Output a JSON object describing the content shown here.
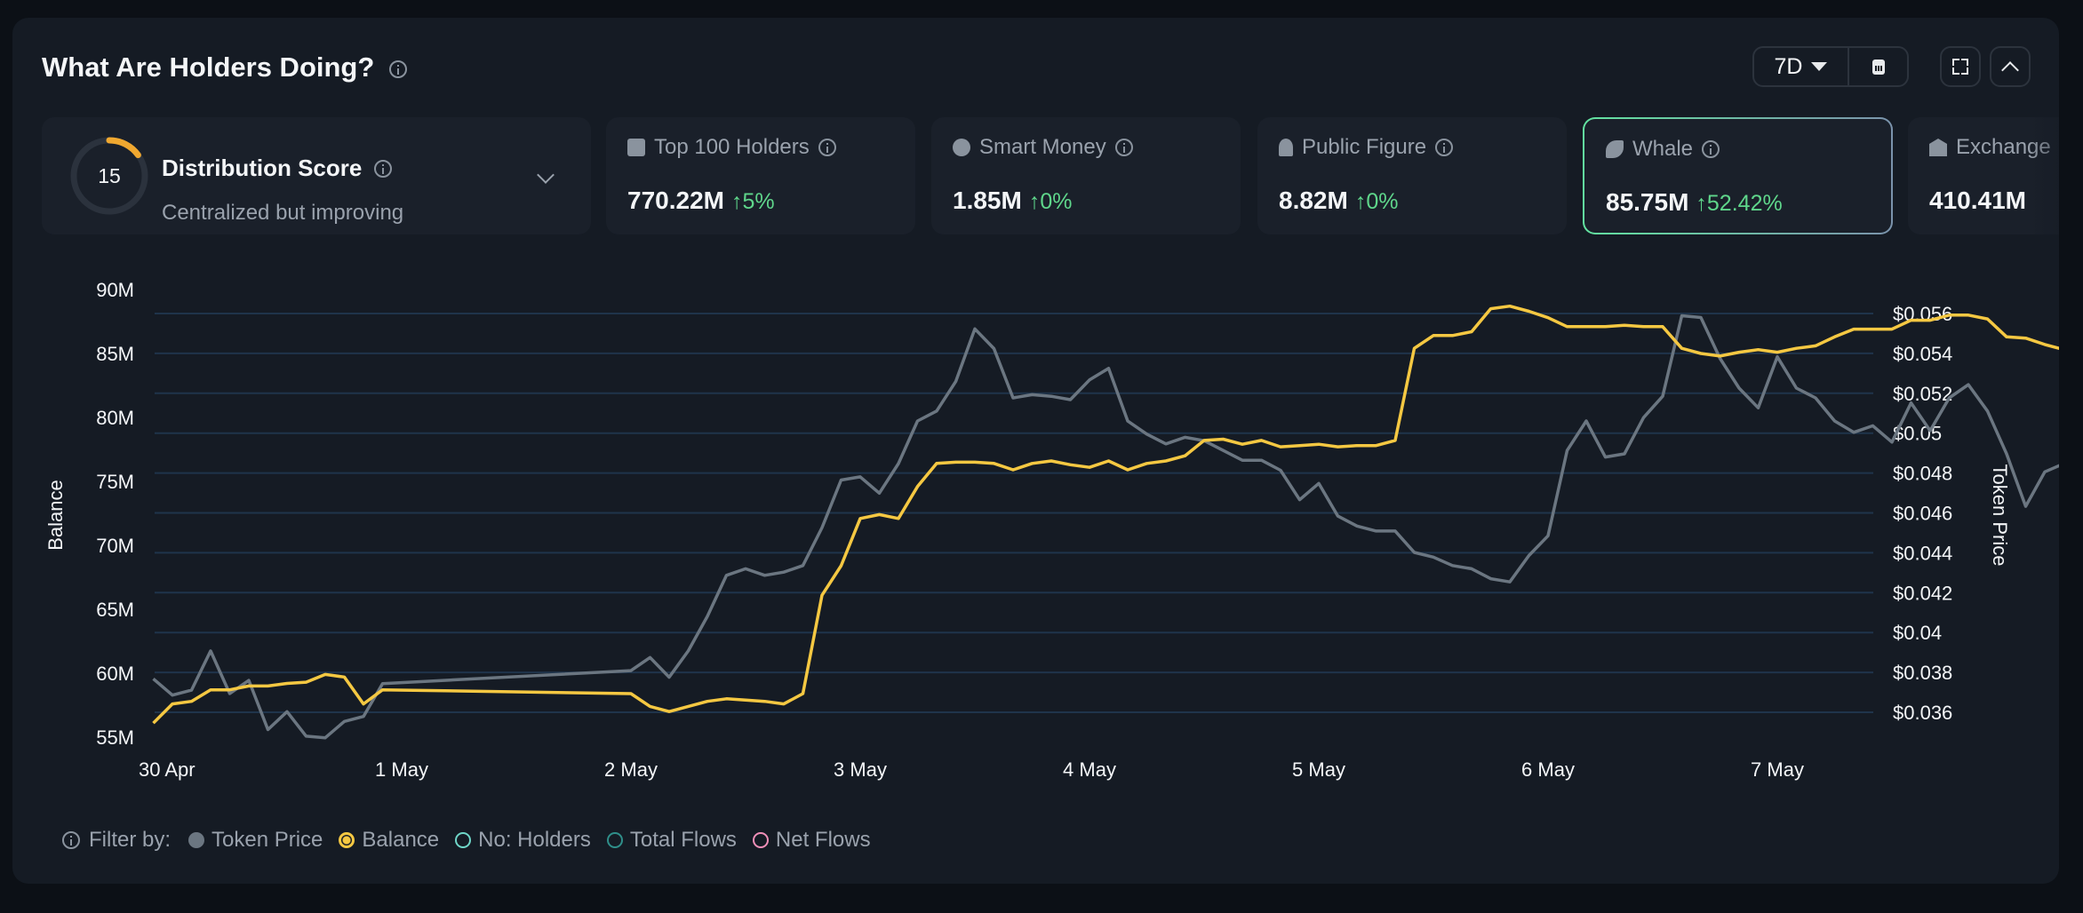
{
  "header": {
    "title": "What Are Holders Doing?",
    "range": "7D"
  },
  "distribution": {
    "score": "15",
    "score_value": 15,
    "title": "Distribution Score",
    "subtitle": "Centralized but improving",
    "ring_color": "#f0a830"
  },
  "cards": [
    {
      "label": "Top 100 Holders",
      "icon": "wallet-icon",
      "value": "770.22M",
      "change": "5%",
      "direction": "up"
    },
    {
      "label": "Smart Money",
      "icon": "sunglasses-icon",
      "value": "1.85M",
      "change": "0%",
      "direction": "up"
    },
    {
      "label": "Public Figure",
      "icon": "speaker-icon",
      "value": "8.82M",
      "change": "0%",
      "direction": "up"
    },
    {
      "label": "Whale",
      "icon": "whale-icon",
      "value": "85.75M",
      "change": "52.42%",
      "direction": "up",
      "selected": true
    },
    {
      "label": "Exchange",
      "label_visible": "Excha",
      "icon": "bank-icon",
      "value": "410.41M"
    }
  ],
  "legend": {
    "prefix": "Filter by:",
    "items": [
      {
        "label": "Token Price",
        "color": "#6b7681",
        "active": true
      },
      {
        "label": "Balance",
        "color": "#f5c842",
        "active": true
      },
      {
        "label": "No: Holders",
        "color": "#6fd6c8",
        "active": false
      },
      {
        "label": "Total Flows",
        "color": "#2f8f8a",
        "active": false
      },
      {
        "label": "Net Flows",
        "color": "#f08fb8",
        "active": false
      }
    ]
  },
  "chart_data": {
    "type": "line",
    "xlabel": "",
    "x_ticks": [
      "30 Apr",
      "1 May",
      "2 May",
      "3 May",
      "4 May",
      "5 May",
      "6 May",
      "7 May"
    ],
    "y_left": {
      "label": "Balance",
      "ticks": [
        "90M",
        "85M",
        "80M",
        "75M",
        "70M",
        "65M",
        "60M",
        "55M"
      ],
      "range": [
        55,
        90
      ]
    },
    "y_right": {
      "label": "Token Price",
      "ticks": [
        "$0.056",
        "$0.054",
        "$0.052",
        "$0.05",
        "$0.048",
        "$0.046",
        "$0.044",
        "$0.042",
        "$0.04",
        "$0.038",
        "$0.036"
      ],
      "range": [
        0.036,
        0.056
      ]
    },
    "grid": true,
    "x": [
      "29 Apr 22:00",
      "30 Apr 00:00",
      "30 Apr 02:00",
      "30 Apr 04:00",
      "30 Apr 06:00",
      "30 Apr 08:00",
      "30 Apr 10:00",
      "30 Apr 12:00",
      "30 Apr 14:00",
      "30 Apr 16:00",
      "30 Apr 18:00",
      "30 Apr 20:00",
      "30 Apr 22:00",
      "1 May 00:00",
      "1 May 02:00",
      "1 May 04:00",
      "1 May 06:00",
      "1 May 08:00",
      "1 May 10:00",
      "1 May 12:00",
      "1 May 14:00",
      "1 May 16:00",
      "1 May 18:00",
      "1 May 20:00",
      "1 May 22:00",
      "2 May 00:00",
      "2 May 02:00",
      "2 May 04:00",
      "2 May 06:00",
      "2 May 08:00",
      "2 May 10:00",
      "2 May 12:00",
      "2 May 14:00",
      "2 May 16:00",
      "2 May 18:00",
      "2 May 20:00",
      "2 May 22:00",
      "3 May 00:00",
      "3 May 02:00",
      "3 May 04:00",
      "3 May 06:00",
      "3 May 08:00",
      "3 May 10:00",
      "3 May 12:00",
      "3 May 14:00",
      "3 May 16:00",
      "3 May 18:00",
      "3 May 20:00",
      "3 May 22:00",
      "4 May 00:00",
      "4 May 02:00",
      "4 May 04:00",
      "4 May 06:00",
      "4 May 08:00",
      "4 May 10:00",
      "4 May 12:00",
      "4 May 14:00",
      "4 May 16:00",
      "4 May 18:00",
      "4 May 20:00",
      "4 May 22:00",
      "5 May 00:00",
      "5 May 02:00",
      "5 May 04:00",
      "5 May 06:00",
      "5 May 08:00",
      "5 May 10:00",
      "5 May 12:00",
      "5 May 14:00",
      "5 May 16:00",
      "5 May 18:00",
      "5 May 20:00",
      "5 May 22:00",
      "6 May 00:00",
      "6 May 02:00",
      "6 May 04:00",
      "6 May 06:00",
      "6 May 08:00",
      "6 May 10:00",
      "6 May 12:00",
      "6 May 14:00",
      "6 May 16:00",
      "6 May 18:00",
      "6 May 20:00",
      "6 May 22:00",
      "7 May 00:00",
      "7 May 02:00",
      "7 May 04:00",
      "7 May 06:00",
      "7 May 08:00",
      "7 May 10:00"
    ],
    "series": [
      {
        "name": "Token Price",
        "axis": "right",
        "color": "#6b7681",
        "values": [
          0.03768,
          0.03686,
          0.03711,
          0.03908,
          0.03694,
          0.0376,
          0.03513,
          0.03603,
          0.0348,
          0.03472,
          0.03554,
          0.03579,
          0.03744,
          0.03809,
          0.03875,
          0.03776,
          0.03908,
          0.04081,
          0.04287,
          0.0432,
          0.04287,
          0.04303,
          0.04336,
          0.04526,
          0.04765,
          0.04781,
          0.04699,
          0.04847,
          0.05061,
          0.05111,
          0.05259,
          0.05523,
          0.05424,
          0.05177,
          0.05193,
          0.05185,
          0.05168,
          0.05267,
          0.05325,
          0.05061,
          0.04995,
          0.04946,
          0.04979,
          0.04962,
          0.04913,
          0.04864,
          0.04864,
          0.04814,
          0.04666,
          0.04748,
          0.04584,
          0.04534,
          0.04509,
          0.04509,
          0.04402,
          0.04378,
          0.04336,
          0.0432,
          0.0427,
          0.04254,
          0.04386,
          0.04485,
          0.04913,
          0.05061,
          0.0488,
          0.04896,
          0.05078,
          0.05185,
          0.05589,
          0.0558,
          0.05375,
          0.05226,
          0.05127,
          0.05383,
          0.05226,
          0.05177,
          0.05061,
          0.05004,
          0.05037,
          0.04955,
          0.05152,
          0.05012,
          0.05177,
          0.05243,
          0.05111,
          0.04896,
          0.04633,
          0.04806,
          0.04847,
          0.0488,
          0.04946
        ]
      },
      {
        "name": "Balance",
        "axis": "left",
        "color": "#f5c842",
        "values": [
          56.1,
          57.6,
          57.8,
          58.7,
          58.7,
          59.0,
          59.0,
          59.2,
          59.3,
          59.9,
          59.7,
          57.6,
          58.7,
          58.4,
          57.4,
          57.0,
          57.4,
          57.8,
          58.0,
          57.9,
          57.8,
          57.6,
          58.4,
          66.1,
          68.4,
          72.1,
          72.4,
          72.1,
          74.6,
          76.4,
          76.5,
          76.5,
          76.4,
          75.9,
          76.4,
          76.6,
          76.3,
          76.1,
          76.6,
          75.9,
          76.4,
          76.6,
          77.0,
          78.2,
          78.3,
          77.9,
          78.2,
          77.7,
          77.8,
          77.9,
          77.7,
          77.8,
          77.8,
          78.2,
          85.4,
          86.4,
          86.4,
          86.7,
          88.5,
          88.7,
          88.3,
          87.8,
          87.1,
          87.1,
          87.1,
          87.2,
          87.1,
          87.1,
          85.4,
          85.0,
          84.8,
          85.1,
          85.3,
          85.1,
          85.4,
          85.6,
          86.3,
          86.9,
          86.9,
          86.9,
          87.6,
          87.6,
          88.0,
          88.0,
          87.7,
          86.3,
          86.2,
          85.7,
          85.3,
          85.5,
          85.6
        ]
      }
    ]
  }
}
